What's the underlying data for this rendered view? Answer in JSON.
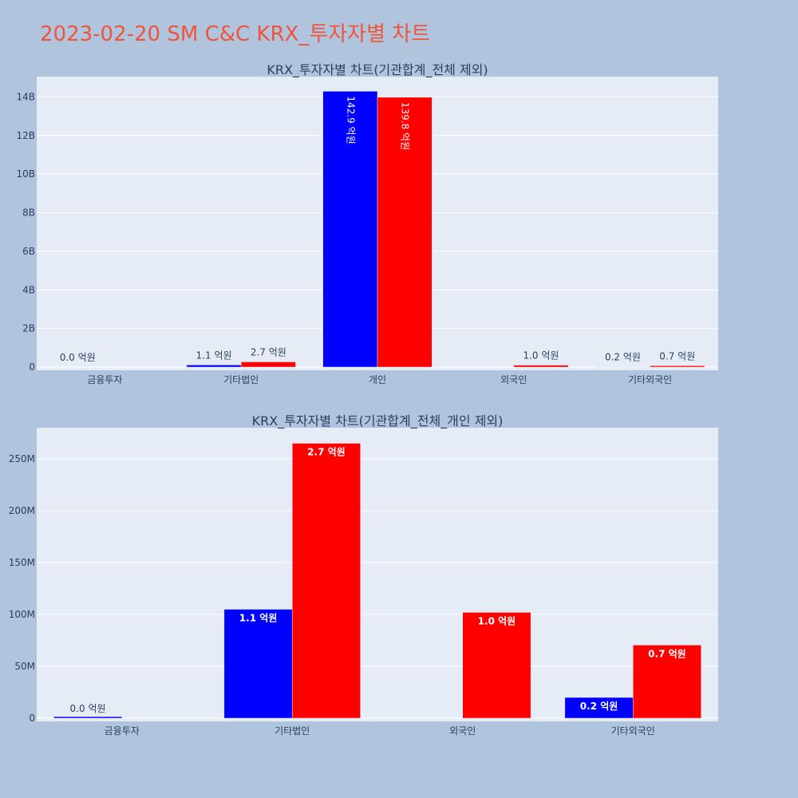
{
  "title": "2023-02-20 SM C&C KRX_투자자별 차트",
  "colors": {
    "buy": "#0000ff",
    "sell": "#ff0000",
    "plot_bg": "#e5ecf6",
    "page_bg": "#b0c4de"
  },
  "chart_data": [
    {
      "type": "bar",
      "title": "KRX_투자자별 차트(기관합계_전체 제외)",
      "categories": [
        "금융투자",
        "기타법인",
        "개인",
        "외국인",
        "기타외국인"
      ],
      "series": [
        {
          "color": "#0000ff",
          "values": [
            0,
            110000000,
            14290000000,
            0,
            20000000
          ],
          "labels": [
            "0.0 억원",
            "1.1 억원",
            "142.9 억원",
            "",
            "0.2 억원"
          ]
        },
        {
          "color": "#ff0000",
          "values": [
            0,
            270000000,
            13980000000,
            100000000,
            70000000
          ],
          "labels": [
            "",
            "2.7 억원",
            "139.8 억원",
            "1.0 억원",
            "0.7 억원"
          ]
        }
      ],
      "yticks": [
        "0",
        "2B",
        "4B",
        "6B",
        "8B",
        "10B",
        "12B",
        "14B"
      ],
      "ytick_values": [
        0,
        2000000000,
        4000000000,
        6000000000,
        8000000000,
        10000000000,
        12000000000,
        14000000000
      ],
      "ylim": [
        0,
        15050000000
      ],
      "grid": true
    },
    {
      "type": "bar",
      "title": "KRX_투자자별 차트(기관합계_전체_개인 제외)",
      "categories": [
        "금융투자",
        "기타법인",
        "외국인",
        "기타외국인"
      ],
      "series": [
        {
          "color": "#0000ff",
          "values": [
            1500000,
            105000000,
            0,
            20000000
          ],
          "labels": [
            "0.0 억원",
            "1.1 억원",
            "",
            "0.2 억원"
          ]
        },
        {
          "color": "#ff0000",
          "values": [
            0,
            265000000,
            102000000,
            70500000
          ],
          "labels": [
            "",
            "2.7 억원",
            "1.0 억원",
            "0.7 억원"
          ]
        }
      ],
      "yticks": [
        "0",
        "50M",
        "100M",
        "150M",
        "200M",
        "250M"
      ],
      "ytick_values": [
        0,
        50000000,
        100000000,
        150000000,
        200000000,
        250000000
      ],
      "ylim": [
        0,
        280000000
      ],
      "grid": true
    }
  ]
}
